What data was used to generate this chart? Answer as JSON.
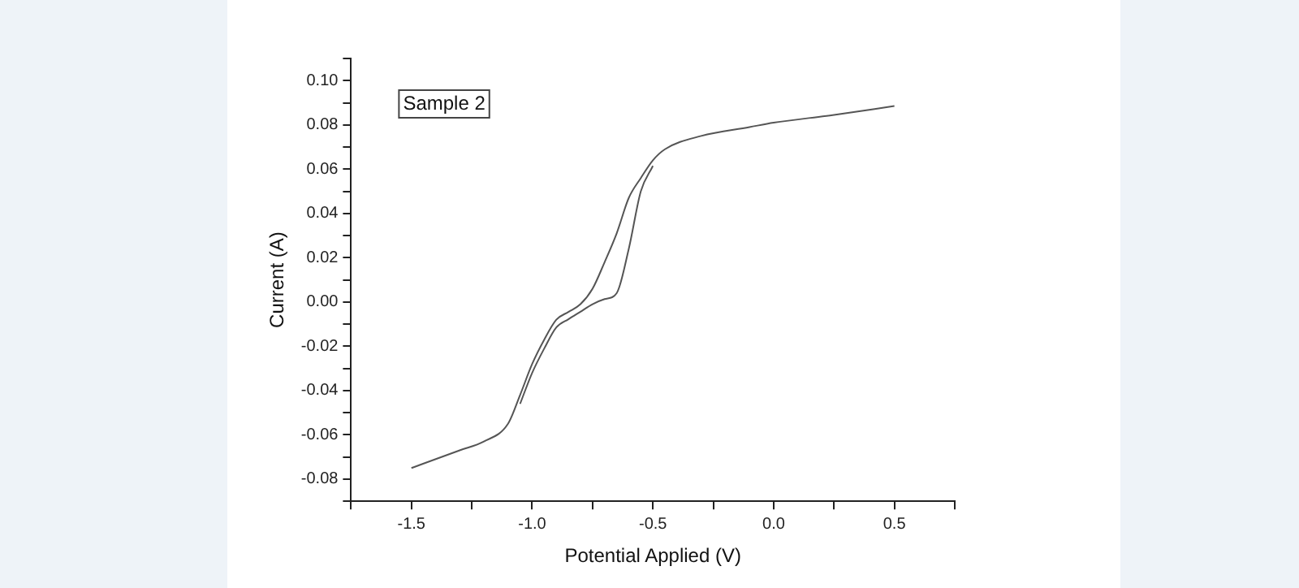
{
  "chart_data": {
    "type": "line",
    "xlabel": "Potential Applied (V)",
    "ylabel": "Current (A)",
    "annotations": [
      "Sample 2"
    ],
    "xlim": [
      -1.75,
      0.75
    ],
    "ylim": [
      -0.09,
      0.11
    ],
    "xticks": [
      {
        "value": -1.75,
        "label": null
      },
      {
        "value": -1.5,
        "label": "-1.5"
      },
      {
        "value": -1.25,
        "label": null
      },
      {
        "value": -1,
        "label": "-1.0"
      },
      {
        "value": -0.75,
        "label": null
      },
      {
        "value": -0.5,
        "label": "-0.5"
      },
      {
        "value": -0.25,
        "label": null
      },
      {
        "value": 0,
        "label": "0.0"
      },
      {
        "value": 0.25,
        "label": null
      },
      {
        "value": 0.5,
        "label": "0.5"
      },
      {
        "value": 0.75,
        "label": null
      }
    ],
    "yticks": [
      {
        "value": -0.09,
        "label": null
      },
      {
        "value": -0.08,
        "label": "-0.08"
      },
      {
        "value": -0.07,
        "label": null
      },
      {
        "value": -0.06,
        "label": "-0.06"
      },
      {
        "value": -0.05,
        "label": null
      },
      {
        "value": -0.04,
        "label": "-0.04"
      },
      {
        "value": -0.03,
        "label": null
      },
      {
        "value": -0.02,
        "label": "-0.02"
      },
      {
        "value": -0.01,
        "label": null
      },
      {
        "value": 0,
        "label": "0.00"
      },
      {
        "value": 0.01,
        "label": null
      },
      {
        "value": 0.02,
        "label": "0.02"
      },
      {
        "value": 0.03,
        "label": null
      },
      {
        "value": 0.04,
        "label": "0.04"
      },
      {
        "value": 0.05,
        "label": null
      },
      {
        "value": 0.06,
        "label": "0.06"
      },
      {
        "value": 0.07,
        "label": null
      },
      {
        "value": 0.08,
        "label": "0.08"
      },
      {
        "value": 0.09,
        "label": null
      },
      {
        "value": 0.1,
        "label": "0.10"
      },
      {
        "value": 0.11,
        "label": null
      }
    ],
    "grid": false,
    "legend": false,
    "marker": "none",
    "line_style": "solid",
    "series": [
      {
        "color": "#555555",
        "x": [
          -1.5,
          -1.3,
          -1.2,
          -1.1,
          -1.05,
          -1,
          -0.95,
          -0.9,
          -0.85,
          -0.8,
          -0.75,
          -0.7,
          -0.65,
          -0.6,
          -0.55,
          -0.5,
          -0.45,
          -0.3,
          -0.1,
          0,
          0.25,
          0.5
        ],
        "values": [
          -0.075,
          -0.067,
          -0.063,
          -0.055,
          -0.042,
          -0.028,
          -0.017,
          -0.008,
          -0.0045,
          -0.001,
          0.006,
          0.018,
          0.031,
          0.047,
          0.056,
          0.064,
          0.069,
          0.075,
          0.079,
          0.081,
          0.0845,
          0.0885
        ]
      },
      {
        "color": "#555555",
        "x": [
          -1.05,
          -1,
          -0.95,
          -0.9,
          -0.85,
          -0.8,
          -0.75,
          -0.7,
          -0.65,
          -0.6,
          -0.55,
          -0.5
        ],
        "values": [
          -0.046,
          -0.032,
          -0.021,
          -0.0115,
          -0.0078,
          -0.0044,
          -0.001,
          0.0013,
          0.004,
          0.024,
          0.05,
          0.0615
        ]
      }
    ]
  }
}
